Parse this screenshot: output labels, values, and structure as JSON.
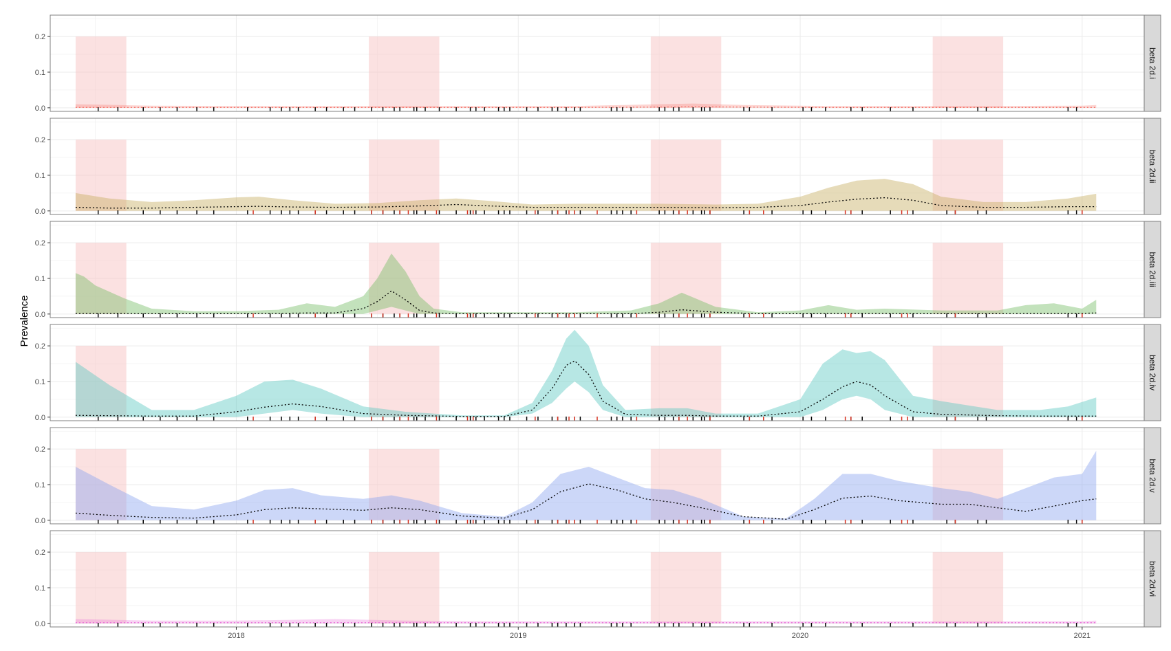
{
  "chart_data": {
    "type": "area",
    "ylabel": "Prevalence",
    "xlabel": "",
    "x_ticks": [
      "2018",
      "2019",
      "2020",
      "2021"
    ],
    "x_tick_values": [
      2018.0,
      2019.0,
      2020.0,
      2021.0
    ],
    "xlim": [
      2017.34,
      2021.22
    ],
    "ylim": [
      -0.01,
      0.26
    ],
    "y_ticks": [
      "0.0",
      "0.1",
      "0.2"
    ],
    "y_tick_values": [
      0.0,
      0.1,
      0.2
    ],
    "grid": true,
    "shaded_periods": [
      [
        2017.43,
        2017.61
      ],
      [
        2018.47,
        2018.72
      ],
      [
        2019.47,
        2019.72
      ],
      [
        2020.47,
        2020.72
      ]
    ],
    "shade_ylim": [
      0.0,
      0.2
    ],
    "colors": {
      "shade": "#f7c9c9",
      "rug_black": "#000000",
      "rug_red": "#d7301f",
      "median_line": "#000000",
      "grid": "#ebebeb",
      "strip_bg": "#d9d9d9"
    },
    "rug": {
      "black": [
        2017.51,
        2017.58,
        2017.67,
        2017.73,
        2017.79,
        2017.86,
        2017.92,
        2018.04,
        2018.12,
        2018.16,
        2018.19,
        2018.22,
        2018.28,
        2018.32,
        2018.38,
        2018.42,
        2018.48,
        2018.52,
        2018.56,
        2018.58,
        2018.63,
        2018.64,
        2018.67,
        2018.72,
        2018.78,
        2018.83,
        2018.85,
        2018.88,
        2018.93,
        2018.95,
        2018.97,
        2019.03,
        2019.07,
        2019.12,
        2019.14,
        2019.17,
        2019.2,
        2019.22,
        2019.33,
        2019.35,
        2019.37,
        2019.4,
        2019.5,
        2019.52,
        2019.55,
        2019.57,
        2019.62,
        2019.65,
        2019.66,
        2019.68,
        2019.8,
        2019.82,
        2019.9,
        2020.01,
        2020.04,
        2020.09,
        2020.18,
        2020.22,
        2020.32,
        2020.4,
        2020.52,
        2020.55,
        2020.63,
        2020.66,
        2020.95,
        2020.98
      ],
      "red": [
        2018.06,
        2018.28,
        2018.48,
        2018.52,
        2018.58,
        2018.61,
        2018.71,
        2018.82,
        2018.84,
        2019.06,
        2019.14,
        2019.18,
        2019.2,
        2019.28,
        2019.42,
        2019.57,
        2019.6,
        2019.68,
        2019.82,
        2019.87,
        2020.16,
        2020.18,
        2020.36,
        2020.38,
        2020.55,
        2021.0
      ]
    },
    "series": [
      {
        "name": "beta 2d.i",
        "color": "#f8766d",
        "fill_opacity": 0.3,
        "x": [
          2017.43,
          2017.7,
          2018.0,
          2018.3,
          2018.6,
          2018.9,
          2019.2,
          2019.5,
          2019.62,
          2019.8,
          2020.1,
          2020.4,
          2020.7,
          2021.0,
          2021.05
        ],
        "lower": [
          0.0,
          0.0,
          0.0,
          0.0,
          0.0,
          0.0,
          0.0,
          0.0,
          0.0,
          0.0,
          0.0,
          0.0,
          0.0,
          0.0,
          0.0
        ],
        "upper": [
          0.01,
          0.006,
          0.005,
          0.005,
          0.005,
          0.005,
          0.005,
          0.01,
          0.012,
          0.008,
          0.005,
          0.005,
          0.005,
          0.006,
          0.008
        ],
        "median": [
          0.001,
          0.001,
          0.001,
          0.001,
          0.001,
          0.001,
          0.001,
          0.002,
          0.003,
          0.002,
          0.001,
          0.001,
          0.001,
          0.001,
          0.001
        ],
        "line_color": "#f8766d"
      },
      {
        "name": "beta 2d.ii",
        "color": "#c8b064",
        "fill_opacity": 0.45,
        "x": [
          2017.43,
          2017.55,
          2017.7,
          2017.85,
          2018.0,
          2018.08,
          2018.2,
          2018.35,
          2018.5,
          2018.65,
          2018.78,
          2018.9,
          2019.05,
          2019.2,
          2019.35,
          2019.5,
          2019.7,
          2019.85,
          2020.0,
          2020.1,
          2020.2,
          2020.3,
          2020.4,
          2020.5,
          2020.65,
          2020.8,
          2020.95,
          2021.05
        ],
        "lower": [
          0.0,
          0.0,
          0.0,
          0.0,
          0.0,
          0.0,
          0.0,
          0.0,
          0.0,
          0.0,
          0.0,
          0.0,
          0.0,
          0.0,
          0.0,
          0.0,
          0.0,
          0.0,
          0.0,
          0.0,
          0.0,
          0.0,
          0.0,
          0.0,
          0.0,
          0.0,
          0.0,
          0.0
        ],
        "upper": [
          0.05,
          0.035,
          0.025,
          0.03,
          0.038,
          0.04,
          0.03,
          0.02,
          0.022,
          0.03,
          0.035,
          0.028,
          0.018,
          0.02,
          0.02,
          0.02,
          0.018,
          0.02,
          0.04,
          0.065,
          0.085,
          0.09,
          0.075,
          0.04,
          0.025,
          0.025,
          0.035,
          0.048
        ],
        "median": [
          0.01,
          0.008,
          0.008,
          0.01,
          0.012,
          0.013,
          0.011,
          0.01,
          0.011,
          0.014,
          0.018,
          0.014,
          0.01,
          0.01,
          0.01,
          0.01,
          0.009,
          0.01,
          0.015,
          0.025,
          0.033,
          0.037,
          0.03,
          0.015,
          0.01,
          0.01,
          0.012,
          0.012
        ],
        "line_color": "#000000"
      },
      {
        "name": "beta 2d.iii",
        "color": "#7bbf6a",
        "fill_opacity": 0.45,
        "x": [
          2017.43,
          2017.46,
          2017.5,
          2017.6,
          2017.7,
          2017.85,
          2018.0,
          2018.15,
          2018.25,
          2018.35,
          2018.45,
          2018.5,
          2018.55,
          2018.6,
          2018.65,
          2018.7,
          2018.8,
          2019.0,
          2019.2,
          2019.4,
          2019.5,
          2019.58,
          2019.7,
          2019.85,
          2020.0,
          2020.1,
          2020.2,
          2020.3,
          2020.5,
          2020.7,
          2020.8,
          2020.9,
          2021.0,
          2021.05
        ],
        "lower": [
          0.0,
          0.0,
          0.0,
          0.0,
          0.0,
          0.0,
          0.0,
          0.0,
          0.0,
          0.0,
          0.0,
          0.01,
          0.02,
          0.01,
          0.0,
          0.0,
          0.0,
          0.0,
          0.0,
          0.0,
          0.0,
          0.0,
          0.0,
          0.0,
          0.0,
          0.0,
          0.0,
          0.0,
          0.0,
          0.0,
          0.0,
          0.0,
          0.0,
          0.0
        ],
        "upper": [
          0.115,
          0.105,
          0.08,
          0.045,
          0.015,
          0.008,
          0.008,
          0.012,
          0.03,
          0.02,
          0.05,
          0.1,
          0.17,
          0.12,
          0.05,
          0.015,
          0.005,
          0.005,
          0.005,
          0.01,
          0.03,
          0.06,
          0.02,
          0.005,
          0.01,
          0.025,
          0.012,
          0.015,
          0.01,
          0.01,
          0.025,
          0.03,
          0.015,
          0.04
        ],
        "median": [
          0.002,
          0.002,
          0.002,
          0.002,
          0.001,
          0.001,
          0.001,
          0.002,
          0.003,
          0.003,
          0.015,
          0.035,
          0.065,
          0.04,
          0.01,
          0.003,
          0.001,
          0.001,
          0.001,
          0.001,
          0.005,
          0.012,
          0.005,
          0.001,
          0.001,
          0.002,
          0.002,
          0.002,
          0.001,
          0.001,
          0.002,
          0.002,
          0.002,
          0.003
        ],
        "line_color": "#000000"
      },
      {
        "name": "beta 2d.iv",
        "color": "#5fc9c4",
        "fill_opacity": 0.45,
        "x": [
          2017.43,
          2017.55,
          2017.7,
          2017.85,
          2018.0,
          2018.1,
          2018.2,
          2018.3,
          2018.45,
          2018.6,
          2018.8,
          2018.95,
          2019.05,
          2019.12,
          2019.17,
          2019.2,
          2019.25,
          2019.3,
          2019.38,
          2019.5,
          2019.6,
          2019.7,
          2019.85,
          2020.0,
          2020.08,
          2020.15,
          2020.2,
          2020.25,
          2020.3,
          2020.4,
          2020.5,
          2020.7,
          2020.85,
          2020.95,
          2021.05
        ],
        "lower": [
          0.0,
          0.0,
          0.0,
          0.0,
          0.0,
          0.01,
          0.02,
          0.01,
          0.0,
          0.0,
          0.0,
          0.0,
          0.01,
          0.04,
          0.08,
          0.1,
          0.07,
          0.02,
          0.0,
          0.0,
          0.0,
          0.0,
          0.0,
          0.0,
          0.02,
          0.05,
          0.06,
          0.05,
          0.02,
          0.0,
          0.0,
          0.0,
          0.0,
          0.0,
          0.0
        ],
        "upper": [
          0.155,
          0.09,
          0.02,
          0.02,
          0.06,
          0.1,
          0.105,
          0.08,
          0.03,
          0.015,
          0.005,
          0.005,
          0.04,
          0.13,
          0.22,
          0.245,
          0.2,
          0.09,
          0.02,
          0.025,
          0.025,
          0.01,
          0.01,
          0.05,
          0.15,
          0.19,
          0.18,
          0.185,
          0.16,
          0.06,
          0.045,
          0.02,
          0.02,
          0.03,
          0.055
        ],
        "median": [
          0.005,
          0.004,
          0.003,
          0.003,
          0.015,
          0.028,
          0.037,
          0.03,
          0.01,
          0.005,
          0.002,
          0.002,
          0.02,
          0.08,
          0.145,
          0.158,
          0.12,
          0.045,
          0.008,
          0.005,
          0.005,
          0.003,
          0.003,
          0.015,
          0.05,
          0.085,
          0.1,
          0.09,
          0.06,
          0.015,
          0.008,
          0.004,
          0.003,
          0.003,
          0.003
        ],
        "line_color": "#000000"
      },
      {
        "name": "beta 2d.v",
        "color": "#8fa6f0",
        "fill_opacity": 0.45,
        "x": [
          2017.43,
          2017.55,
          2017.7,
          2017.85,
          2018.0,
          2018.1,
          2018.2,
          2018.3,
          2018.45,
          2018.55,
          2018.65,
          2018.8,
          2018.95,
          2019.05,
          2019.15,
          2019.25,
          2019.35,
          2019.45,
          2019.55,
          2019.65,
          2019.8,
          2019.95,
          2020.05,
          2020.15,
          2020.25,
          2020.35,
          2020.5,
          2020.6,
          2020.7,
          2020.8,
          2020.9,
          2021.0,
          2021.05
        ],
        "lower": [
          0.0,
          0.0,
          0.0,
          0.0,
          0.0,
          0.0,
          0.0,
          0.0,
          0.0,
          0.0,
          0.0,
          0.0,
          0.0,
          0.0,
          0.0,
          0.0,
          0.0,
          0.0,
          0.0,
          0.0,
          0.0,
          0.0,
          0.0,
          0.0,
          0.0,
          0.0,
          0.0,
          0.0,
          0.0,
          0.0,
          0.0,
          0.0,
          0.0
        ],
        "upper": [
          0.15,
          0.1,
          0.04,
          0.03,
          0.055,
          0.085,
          0.09,
          0.07,
          0.06,
          0.07,
          0.055,
          0.02,
          0.01,
          0.05,
          0.13,
          0.15,
          0.12,
          0.09,
          0.085,
          0.06,
          0.01,
          0.005,
          0.06,
          0.13,
          0.13,
          0.11,
          0.09,
          0.08,
          0.06,
          0.09,
          0.12,
          0.13,
          0.195
        ],
        "median": [
          0.02,
          0.014,
          0.008,
          0.006,
          0.015,
          0.03,
          0.035,
          0.032,
          0.028,
          0.035,
          0.03,
          0.012,
          0.006,
          0.03,
          0.08,
          0.102,
          0.085,
          0.06,
          0.05,
          0.035,
          0.01,
          0.003,
          0.03,
          0.062,
          0.068,
          0.055,
          0.045,
          0.045,
          0.035,
          0.025,
          0.04,
          0.055,
          0.06
        ],
        "line_color": "#000000"
      },
      {
        "name": "beta 2d.vi",
        "color": "#e86ad8",
        "fill_opacity": 0.3,
        "x": [
          2017.43,
          2017.7,
          2018.0,
          2018.2,
          2018.35,
          2018.6,
          2018.9,
          2019.2,
          2019.5,
          2019.8,
          2020.1,
          2020.4,
          2020.7,
          2021.0,
          2021.05
        ],
        "lower": [
          0.0,
          0.0,
          0.0,
          0.0,
          0.0,
          0.0,
          0.0,
          0.0,
          0.0,
          0.0,
          0.0,
          0.0,
          0.0,
          0.0,
          0.0
        ],
        "upper": [
          0.012,
          0.008,
          0.008,
          0.01,
          0.012,
          0.008,
          0.006,
          0.006,
          0.006,
          0.006,
          0.006,
          0.006,
          0.006,
          0.006,
          0.008
        ],
        "median": [
          0.002,
          0.002,
          0.002,
          0.002,
          0.002,
          0.002,
          0.002,
          0.002,
          0.002,
          0.002,
          0.002,
          0.002,
          0.002,
          0.002,
          0.002
        ],
        "line_color": "#e86ad8"
      }
    ]
  }
}
